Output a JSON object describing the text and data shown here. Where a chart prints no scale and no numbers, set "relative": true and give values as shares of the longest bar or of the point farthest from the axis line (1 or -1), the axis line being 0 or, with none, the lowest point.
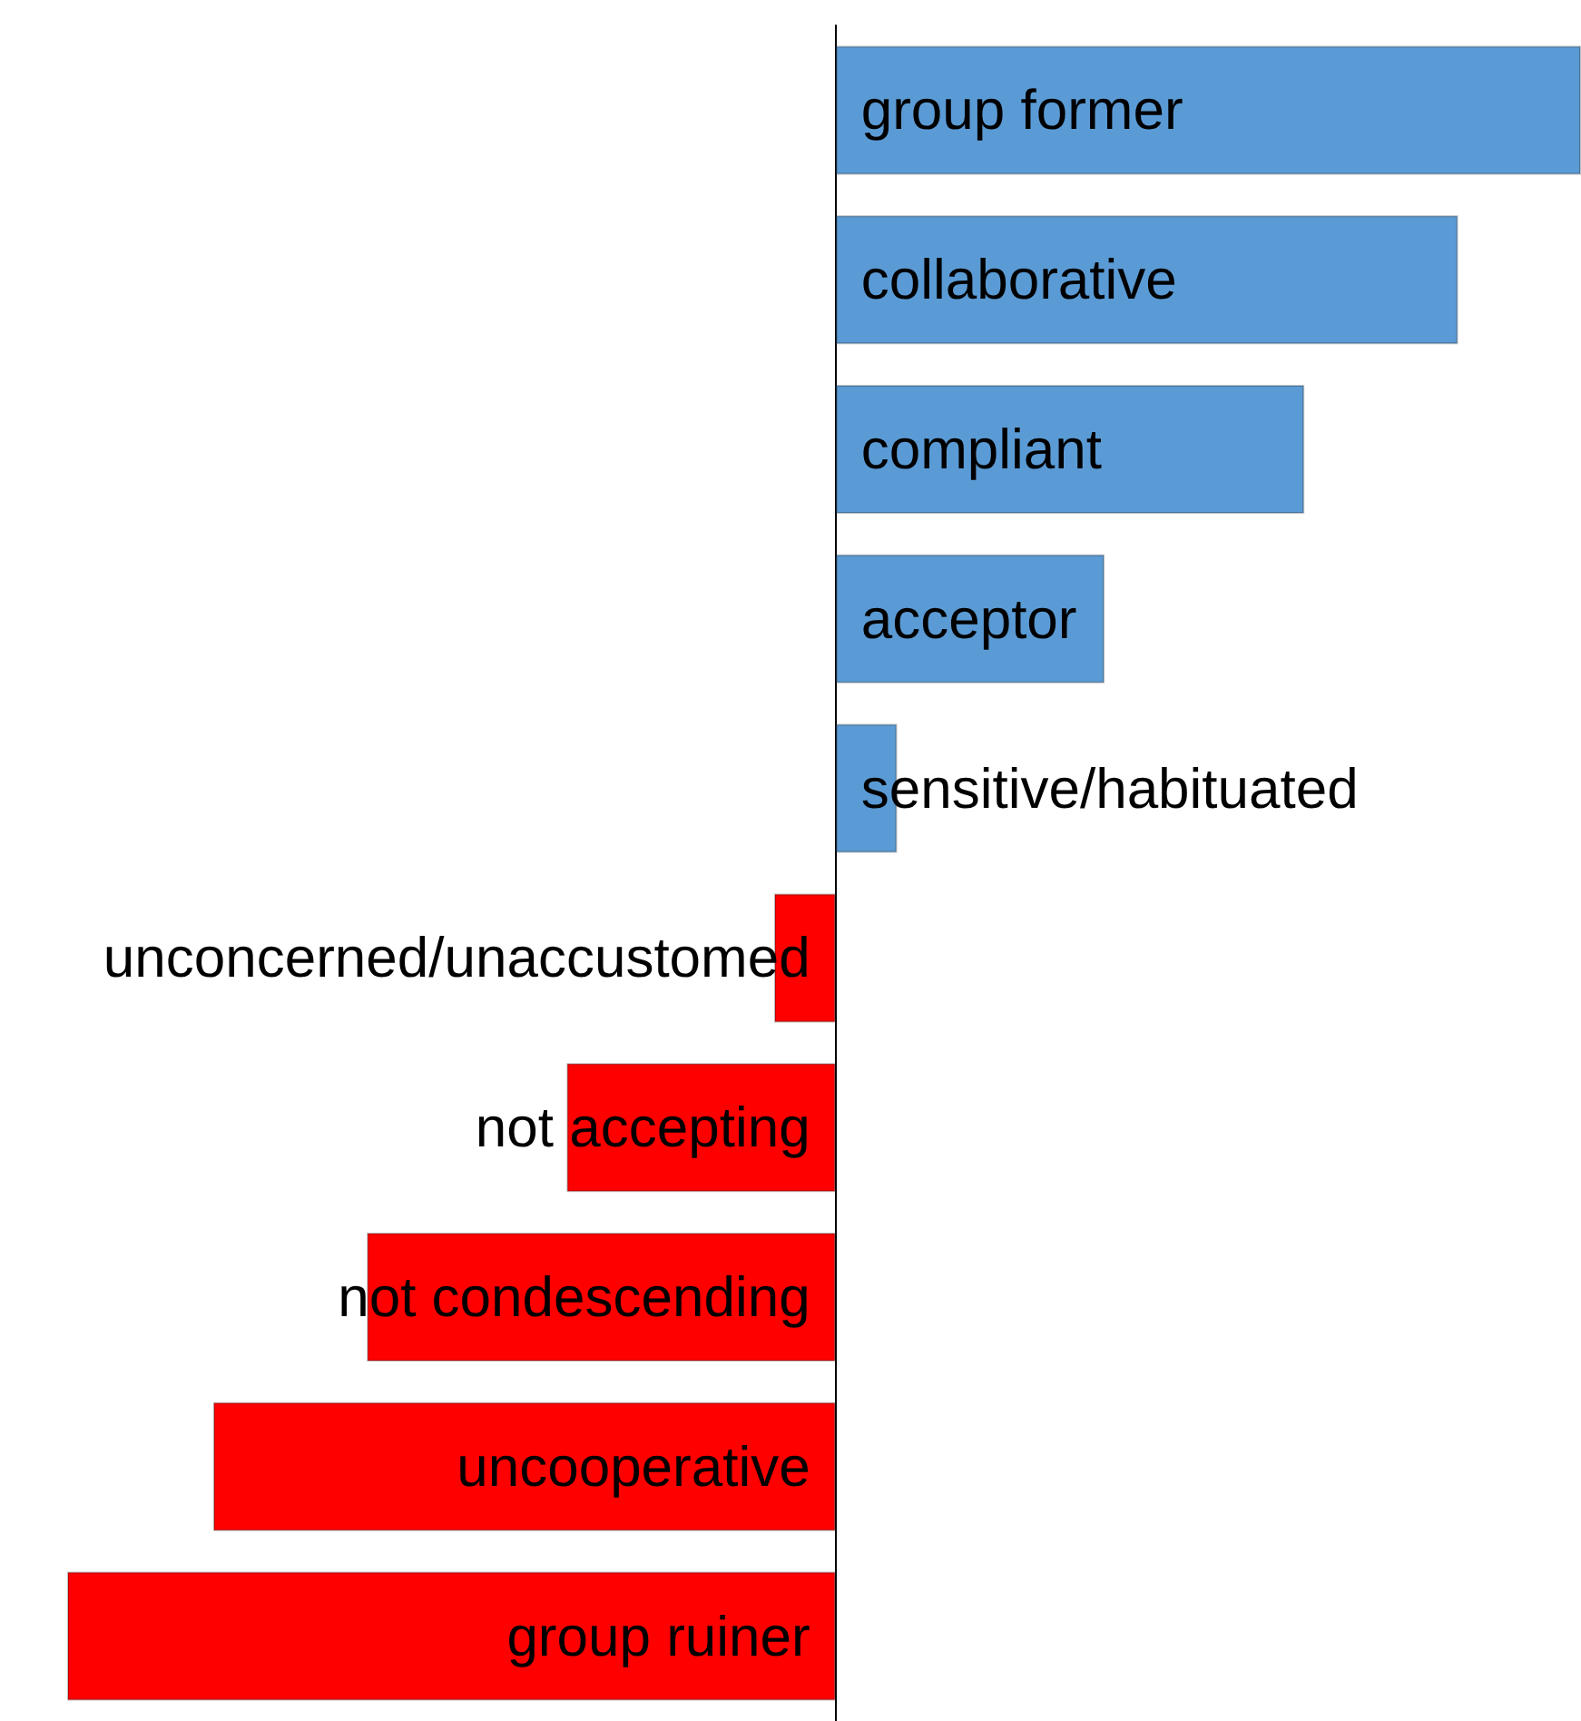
{
  "chart_data": {
    "type": "bar",
    "orientation": "horizontal",
    "relative": true,
    "categories": [
      "group former",
      "collaborative",
      "compliant",
      "acceptor",
      "sensitive/habituated",
      "unconcerned/unaccustomed",
      "not accepting",
      "not condescending",
      "uncooperative",
      "group ruiner"
    ],
    "values": [
      0.97,
      0.81,
      0.61,
      0.35,
      0.08,
      -0.08,
      -0.35,
      -0.61,
      -0.81,
      -1
    ],
    "colors": [
      "#5b9bd5",
      "#5b9bd5",
      "#5b9bd5",
      "#5b9bd5",
      "#5b9bd5",
      "#ff0000",
      "#ff0000",
      "#ff0000",
      "#ff0000",
      "#ff0000"
    ]
  }
}
